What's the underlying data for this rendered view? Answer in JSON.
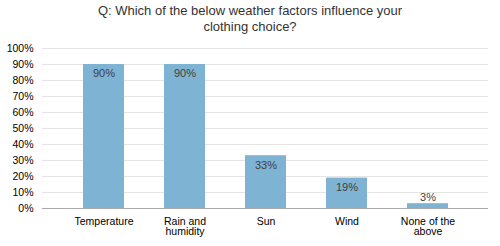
{
  "chart_data": {
    "type": "bar",
    "title": "Q: Which of the below weather factors influence your\nclothing choice?",
    "categories": [
      "Temperature",
      "Rain and\nhumidity",
      "Sun",
      "Wind",
      "None of the\nabove"
    ],
    "values": [
      90,
      90,
      33,
      19,
      3
    ],
    "value_labels": [
      "90%",
      "90%",
      "33%",
      "19%",
      "3%"
    ],
    "data_labels": true,
    "color": "#7fb3d3",
    "ylim": [
      0,
      100
    ],
    "yticks": [
      {
        "value": 0,
        "label": "0%"
      },
      {
        "value": 10,
        "label": "10%"
      },
      {
        "value": 20,
        "label": "20%"
      },
      {
        "value": 30,
        "label": "30%"
      },
      {
        "value": 40,
        "label": "40%"
      },
      {
        "value": 50,
        "label": "50%"
      },
      {
        "value": 60,
        "label": "60%"
      },
      {
        "value": 70,
        "label": "70%"
      },
      {
        "value": 80,
        "label": "80%"
      },
      {
        "value": 90,
        "label": "90%"
      },
      {
        "value": 100,
        "label": "100%"
      }
    ],
    "grid": true
  }
}
